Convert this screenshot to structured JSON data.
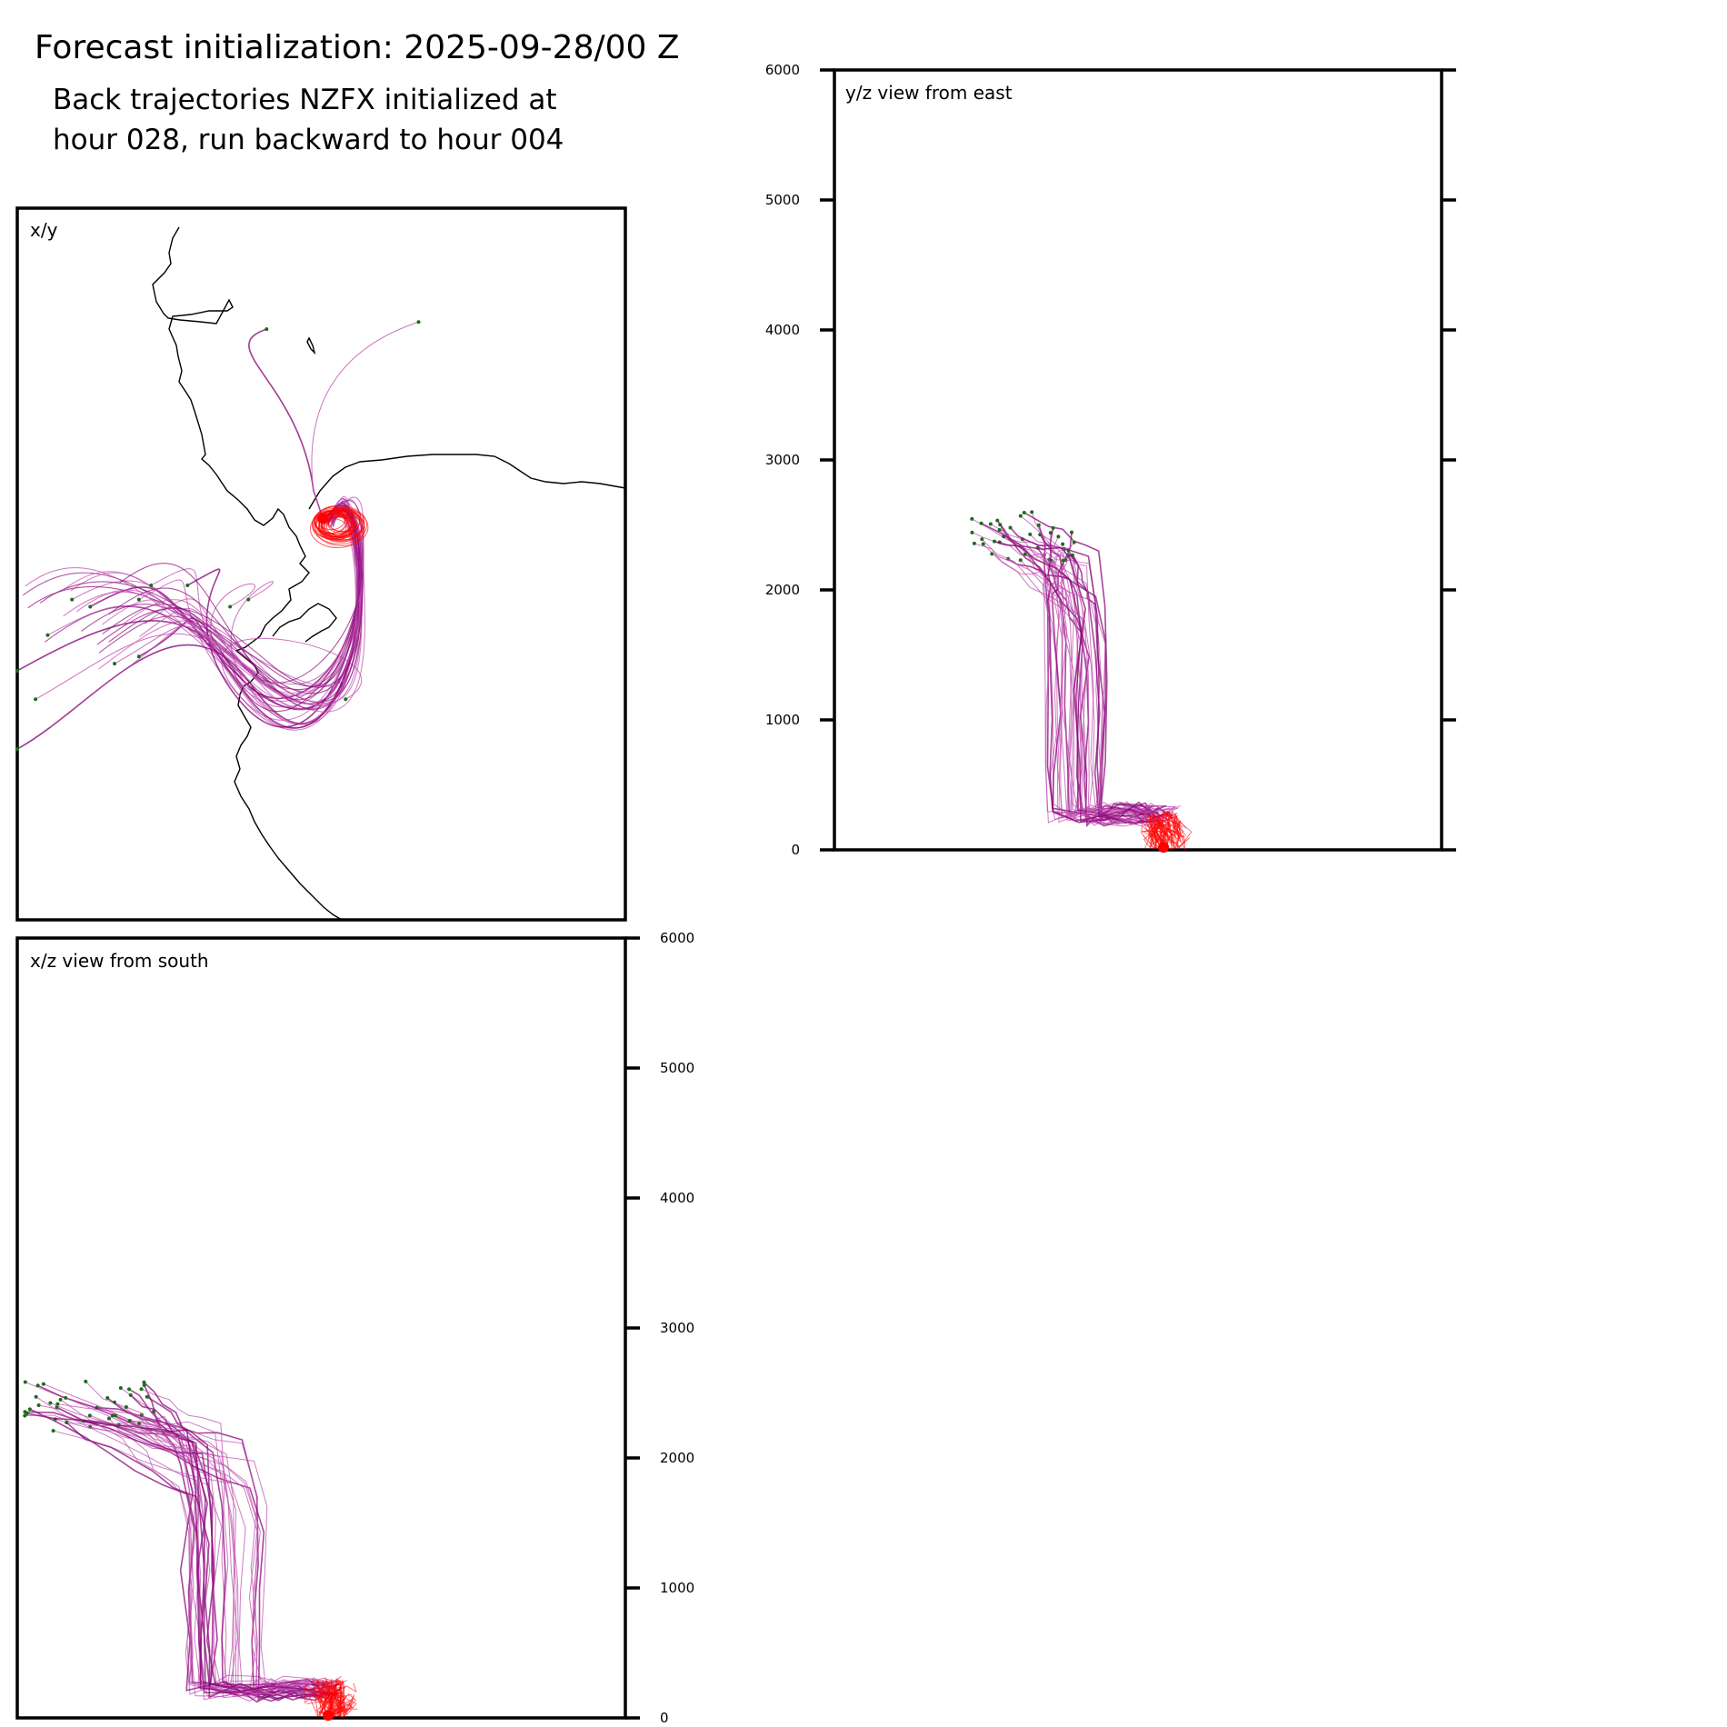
{
  "figure": {
    "title": "Forecast initialization: 2025-09-28/00 Z",
    "subtitle_line1": "Back trajectories NZFX initialized at",
    "subtitle_line2": "hour 028, run backward to hour 004"
  },
  "colors": {
    "trajectory": "#8b0a7a",
    "trajectory_light": "#c050b0",
    "start": "#ff0000",
    "endpoint": "#1a6e1a",
    "coast": "#000000"
  },
  "chart_data": [
    {
      "panel": "x/y",
      "type": "line",
      "label": "x/y",
      "description_series": "trajectories in map view, converging on release point",
      "release_point": [
        0.53,
        0.44
      ],
      "end_points": [
        [
          0.0,
          0.65
        ],
        [
          0.05,
          0.6
        ],
        [
          0.09,
          0.55
        ],
        [
          0.12,
          0.56
        ],
        [
          0.2,
          0.55
        ],
        [
          0.22,
          0.53
        ],
        [
          0.28,
          0.53
        ],
        [
          0.35,
          0.56
        ],
        [
          0.38,
          0.55
        ],
        [
          0.41,
          0.17
        ],
        [
          0.66,
          0.16
        ],
        [
          0.54,
          0.69
        ],
        [
          0.0,
          0.76
        ],
        [
          0.03,
          0.69
        ],
        [
          0.16,
          0.64
        ],
        [
          0.2,
          0.63
        ]
      ],
      "note": "fractional map coordinates of trajectory endpoints"
    },
    {
      "panel": "y/z",
      "type": "line",
      "label": "y/z view from east",
      "ylim": [
        0,
        6000
      ],
      "yticks": [
        0,
        1000,
        2000,
        3000,
        4000,
        5000,
        6000
      ],
      "tick_labels": [
        "0",
        "1000",
        "2000",
        "3000",
        "4000",
        "5000",
        "6000"
      ],
      "heights_m": {
        "upper_cluster": 2600,
        "lower_cluster": 200,
        "max": 2650
      }
    },
    {
      "panel": "x/z",
      "type": "line",
      "label": "x/z view from south",
      "ylim": [
        0,
        6000
      ],
      "yticks": [
        0,
        1000,
        2000,
        3000,
        4000,
        5000,
        6000
      ],
      "tick_labels": [
        "0",
        "1000",
        "2000",
        "3000",
        "4000",
        "5000",
        "6000"
      ],
      "heights_m": {
        "upper_cluster": 2600,
        "lower_cluster": 150,
        "max": 2650
      }
    }
  ]
}
